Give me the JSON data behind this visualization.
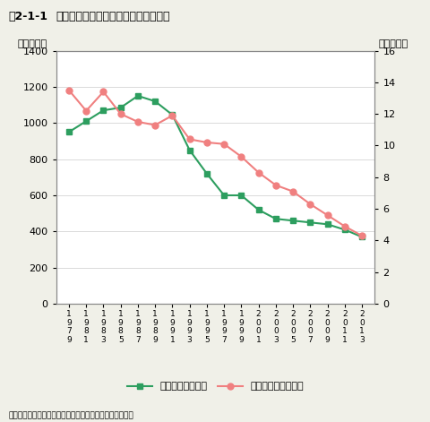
{
  "title_part1": "囲2-1-1",
  "title_part2": "海面漁業・内水面漁業の漁獲量の推移",
  "source_note": "資料：農林水産省漁業・養殖生産統計年報より環境省作成",
  "ylabel_left": "（万トン）",
  "ylabel_right": "（万トン）",
  "legend_left": "海面漁業（左軸）",
  "legend_right": "内水面漁業（右軸）",
  "years": [
    1979,
    1981,
    1983,
    1985,
    1987,
    1989,
    1991,
    1993,
    1995,
    1997,
    1999,
    2001,
    2003,
    2005,
    2007,
    2009,
    2011,
    2013
  ],
  "kaimen": [
    950,
    1010,
    1070,
    1085,
    1150,
    1120,
    1045,
    850,
    720,
    600,
    600,
    520,
    470,
    460,
    450,
    440,
    410,
    370
  ],
  "naisuimen_right": [
    13.5,
    12.2,
    13.4,
    12.0,
    11.5,
    11.3,
    11.9,
    10.4,
    10.2,
    10.1,
    9.3,
    8.3,
    7.5,
    7.1,
    6.3,
    5.6,
    4.9,
    4.3
  ],
  "ylim_left": [
    0,
    1400
  ],
  "ylim_right": [
    0,
    16
  ],
  "yticks_left": [
    0,
    200,
    400,
    600,
    800,
    1000,
    1200,
    1400
  ],
  "yticks_right": [
    0,
    2,
    4,
    6,
    8,
    10,
    12,
    14,
    16
  ],
  "color_kaimen": "#2d9e5f",
  "color_naisuimen": "#f08080",
  "bg_color": "#f0f0e8",
  "plot_bg": "#ffffff"
}
